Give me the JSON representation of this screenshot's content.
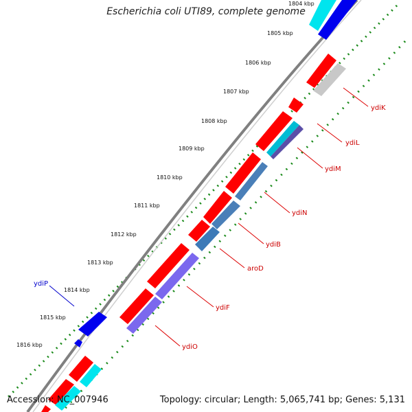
{
  "title": "Escherichia coli UTI89, complete genome",
  "footer": {
    "accession": "Accession: NC_007946",
    "topology": "Topology: circular; Length: 5,065,741 bp; Genes: 5,131"
  },
  "ticks": [
    "1804 kbp",
    "1805 kbp",
    "1806 kbp",
    "1807 kbp",
    "1808 kbp",
    "1809 kbp",
    "1810 kbp",
    "1811 kbp",
    "1812 kbp",
    "1813 kbp",
    "1814 kbp",
    "1815 kbp",
    "1816 kbp"
  ],
  "genes": [
    {
      "label": "ydiK",
      "color": "#cc0000"
    },
    {
      "label": "ydiL",
      "color": "#cc0000"
    },
    {
      "label": "ydiM",
      "color": "#cc0000"
    },
    {
      "label": "ydiN",
      "color": "#cc0000"
    },
    {
      "label": "ydiB",
      "color": "#cc0000"
    },
    {
      "label": "aroD",
      "color": "#cc0000"
    },
    {
      "label": "ydiF",
      "color": "#cc0000"
    },
    {
      "label": "ydiO",
      "color": "#cc0000"
    },
    {
      "label": "ydiP",
      "color": "#0000cc"
    }
  ],
  "colors": {
    "backbone": "#808080",
    "tick_dots": "#1a8a1a",
    "cds_forward": "#ff0000",
    "cds_reverse": "#0000ee",
    "rna": "#00e5ee",
    "gray_feature": "#c8c8c8",
    "blue_feature": "#4a7fb8",
    "purple_feature": "#7b68ee"
  }
}
